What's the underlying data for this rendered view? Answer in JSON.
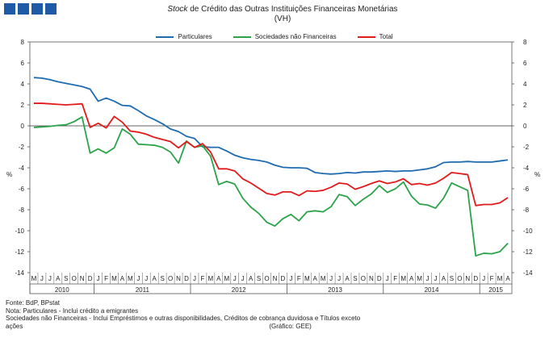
{
  "title": {
    "italic": "Stock",
    "rest": " de Crédito das Outras Instituições Financeiras Monetárias",
    "unit": "(VH)"
  },
  "footer": {
    "source": "Fonte: BdP, BPstat",
    "note1": "Nota: Particulares - Inclui crédito a emigrantes",
    "note2": "Sociedades não Financeiras - Inclui Empréstimos e outras disponibilidades, Créditos de cobrança duvidosa e Títulos exceto",
    "note3": "ações",
    "credit": "(Gráfico: GEE)"
  },
  "colors": {
    "logo": "#1f5aa6",
    "particulares": "#1f6bb0",
    "snf": "#2aa34a",
    "total": "#e11b1b"
  },
  "chart_data": {
    "type": "line",
    "ylabel": "%",
    "ylim": [
      -14,
      8
    ],
    "yticks": [
      8,
      6,
      4,
      2,
      0,
      -2,
      -4,
      -6,
      -8,
      -10,
      -12,
      -14
    ],
    "months": [
      "M",
      "J",
      "J",
      "A",
      "S",
      "O",
      "N",
      "D",
      "J",
      "F",
      "M",
      "A",
      "M",
      "J",
      "J",
      "A",
      "S",
      "O",
      "N",
      "D",
      "J",
      "F",
      "M",
      "A",
      "M",
      "J",
      "J",
      "A",
      "S",
      "O",
      "N",
      "D",
      "J",
      "F",
      "M",
      "A",
      "M",
      "J",
      "J",
      "A",
      "S",
      "O",
      "N",
      "D",
      "J",
      "F",
      "M",
      "A",
      "M",
      "J",
      "J",
      "A",
      "S",
      "O",
      "N",
      "D",
      "J",
      "F",
      "M",
      "A"
    ],
    "years": [
      {
        "label": "2010",
        "start": 0,
        "end": 8
      },
      {
        "label": "2011",
        "start": 8,
        "end": 20
      },
      {
        "label": "2012",
        "start": 20,
        "end": 32
      },
      {
        "label": "2013",
        "start": 32,
        "end": 44
      },
      {
        "label": "2014",
        "start": 44,
        "end": 56
      },
      {
        "label": "2015",
        "start": 56,
        "end": 60
      }
    ],
    "series": [
      {
        "name": "Particulares",
        "key": "particulares",
        "values": [
          4.6,
          4.55,
          4.4,
          4.2,
          4.05,
          3.9,
          3.75,
          3.5,
          2.35,
          2.65,
          2.35,
          1.95,
          1.9,
          1.45,
          0.95,
          0.6,
          0.2,
          -0.3,
          -0.55,
          -1.0,
          -1.2,
          -2.0,
          -2.05,
          -2.05,
          -2.4,
          -2.8,
          -3.05,
          -3.2,
          -3.3,
          -3.45,
          -3.75,
          -3.95,
          -4.0,
          -4.0,
          -4.05,
          -4.45,
          -4.55,
          -4.6,
          -4.55,
          -4.45,
          -4.5,
          -4.4,
          -4.4,
          -4.35,
          -4.3,
          -4.35,
          -4.3,
          -4.3,
          -4.2,
          -4.1,
          -3.9,
          -3.5,
          -3.45,
          -3.45,
          -3.4,
          -3.45,
          -3.45,
          -3.45,
          -3.35,
          -3.25
        ]
      },
      {
        "name": "Sociedades não Financeiras",
        "key": "snf",
        "values": [
          -0.15,
          -0.1,
          -0.05,
          0.05,
          0.1,
          0.4,
          0.85,
          -2.6,
          -2.2,
          -2.6,
          -2.1,
          -0.3,
          -0.8,
          -1.75,
          -1.8,
          -1.85,
          -2.05,
          -2.5,
          -3.55,
          -1.45,
          -2.05,
          -1.9,
          -2.9,
          -5.6,
          -5.3,
          -5.55,
          -6.9,
          -7.75,
          -8.35,
          -9.2,
          -9.55,
          -8.85,
          -8.45,
          -9.05,
          -8.2,
          -8.1,
          -8.2,
          -7.7,
          -6.55,
          -6.75,
          -7.6,
          -7.0,
          -6.5,
          -5.7,
          -6.35,
          -6.0,
          -5.35,
          -6.7,
          -7.45,
          -7.55,
          -7.85,
          -6.9,
          -5.45,
          -5.8,
          -6.15,
          -12.4,
          -12.15,
          -12.2,
          -12.0,
          -11.2
        ]
      },
      {
        "name": "Total",
        "key": "total",
        "values": [
          2.15,
          2.15,
          2.1,
          2.05,
          2.0,
          2.05,
          2.1,
          -0.15,
          0.25,
          -0.2,
          0.9,
          0.35,
          -0.5,
          -0.6,
          -0.8,
          -1.1,
          -1.3,
          -1.5,
          -2.1,
          -1.5,
          -2.05,
          -1.7,
          -2.5,
          -4.1,
          -4.1,
          -4.3,
          -5.05,
          -5.45,
          -5.95,
          -6.45,
          -6.6,
          -6.3,
          -6.3,
          -6.65,
          -6.2,
          -6.25,
          -6.15,
          -5.85,
          -5.45,
          -5.55,
          -6.05,
          -5.8,
          -5.5,
          -5.25,
          -5.5,
          -5.35,
          -5.05,
          -5.6,
          -5.5,
          -5.65,
          -5.45,
          -5.0,
          -4.45,
          -4.55,
          -4.65,
          -7.6,
          -7.5,
          -7.5,
          -7.35,
          -6.85
        ]
      }
    ],
    "legend": [
      "Particulares",
      "Sociedades não Financeiras",
      "Total"
    ]
  }
}
